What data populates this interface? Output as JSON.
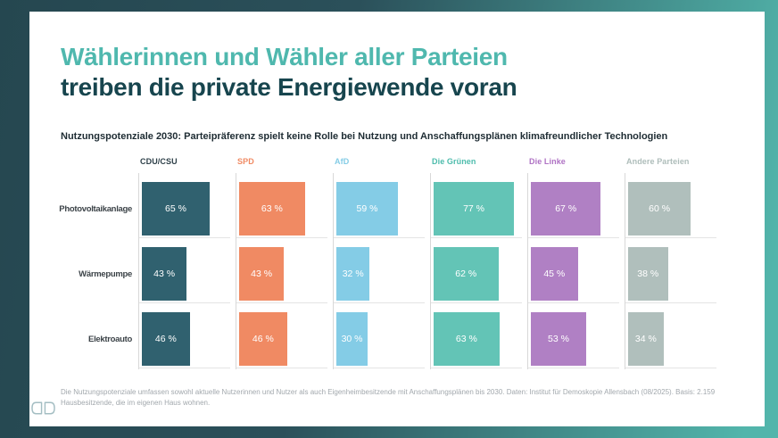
{
  "page_background": {
    "gradient_start": "#254750",
    "gradient_end": "#52B5AB",
    "card_color": "#FFFFFF"
  },
  "header": {
    "title_line1": "Wählerinnen und Wähler aller Parteien",
    "title_line2": "treiben die private Energiewende voran",
    "title_line1_color": "#4FB8AE",
    "title_line2_color": "#17454E",
    "subtitle": "Nutzungspotenziale 2030: Parteipräferenz spielt keine Rolle bei Nutzung und Anschaffungsplänen klimafreundlicher Technologien"
  },
  "chart_data": {
    "type": "bar",
    "orientation": "horizontal",
    "unit": "%",
    "value_suffix": " %",
    "xlim": [
      0,
      100
    ],
    "grid": "row-baselines",
    "legend_position": "column-headers",
    "categories": [
      "Photovoltaikanlage",
      "Wärmepumpe",
      "Elektroauto"
    ],
    "series": [
      {
        "name": "CDU/CSU",
        "color": "#30616F",
        "label_color": "#2E4049",
        "values": [
          65,
          43,
          46
        ]
      },
      {
        "name": "SPD",
        "color": "#F08A63",
        "label_color": "#F08A63",
        "values": [
          63,
          43,
          46
        ]
      },
      {
        "name": "AfD",
        "color": "#84CCE6",
        "label_color": "#84CCE6",
        "values": [
          59,
          32,
          30
        ]
      },
      {
        "name": "Die Grünen",
        "color": "#63C4B6",
        "label_color": "#4DBCAC",
        "values": [
          77,
          62,
          63
        ]
      },
      {
        "name": "Die Linke",
        "color": "#B080C4",
        "label_color": "#AF72C4",
        "values": [
          67,
          45,
          53
        ]
      },
      {
        "name": "Andere Parteien",
        "color": "#B0BFBC",
        "label_color": "#AEBDBA",
        "values": [
          60,
          38,
          34
        ]
      }
    ]
  },
  "footer": {
    "note": "Die Nutzungspotenziale umfassen sowohl aktuelle Nutzerinnen und Nutzer als auch Eigenheimbesitzende mit Anschaffungsplänen bis 2030. Daten: Institut für Demoskopie Allensbach (08/2025). Basis: 2.159 Hausbesitzende, die im eigenen Haus wohnen."
  },
  "logo": {
    "name": "double-d-logo",
    "color": "#A4BEC3"
  }
}
